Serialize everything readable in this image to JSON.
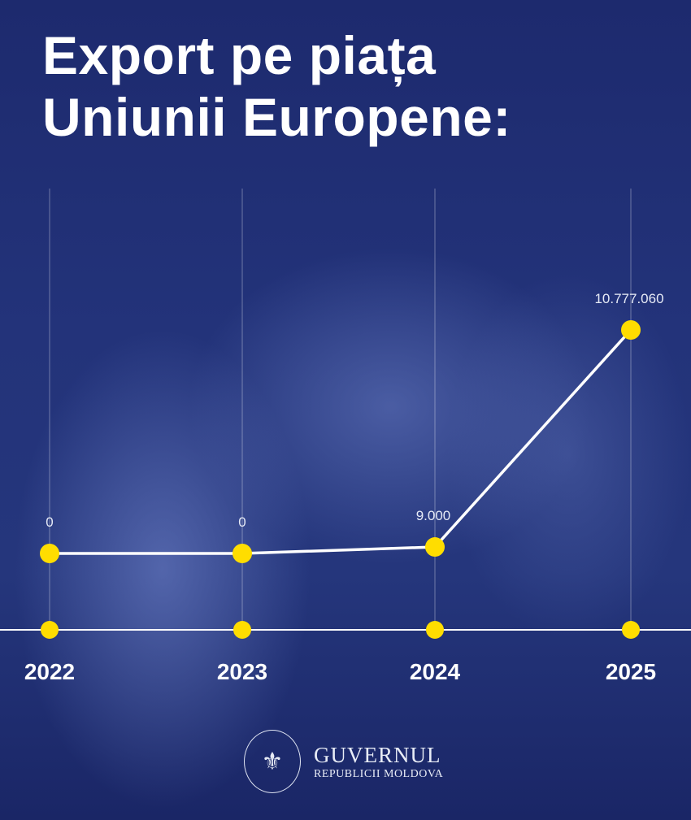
{
  "chart_data": {
    "type": "line",
    "title": "Export pe piața Uniunii Europene:",
    "title_lines": [
      "Export pe piața",
      "Uniunii Europene:"
    ],
    "categories": [
      "2022",
      "2023",
      "2024",
      "2025"
    ],
    "values": [
      0,
      0,
      9000,
      10777060
    ],
    "data_labels": [
      "0",
      "0",
      "9.000",
      "10.777.060"
    ],
    "xlabel": "",
    "ylabel": "",
    "grid": "vertical",
    "colors": {
      "line": "#ffffff",
      "marker": "#ffdd00",
      "background": "#24347a"
    }
  },
  "footer": {
    "brand": "GUVERNUL",
    "subtitle": "REPUBLICII MOLDOVA",
    "seal_text": "GUVERNUL REPUBLICII MOLDOVA"
  }
}
